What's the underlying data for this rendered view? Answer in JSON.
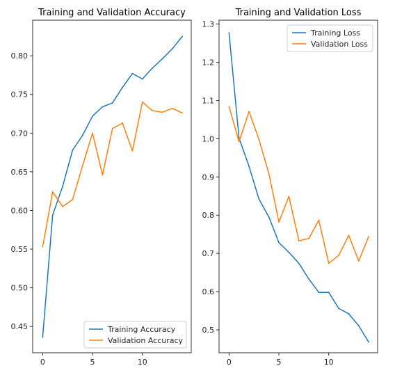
{
  "chart_data": [
    {
      "type": "line",
      "title": "Training and Validation Accuracy",
      "xlabel": "",
      "ylabel": "",
      "xlim": [
        -1,
        14.9
      ],
      "ylim": [
        0.416,
        0.846
      ],
      "xticks": [
        0,
        5,
        10
      ],
      "yticks": [
        0.45,
        0.5,
        0.55,
        0.6,
        0.65,
        0.7,
        0.75,
        0.8
      ],
      "ytick_labels": [
        "0.45",
        "0.50",
        "0.55",
        "0.60",
        "0.65",
        "0.70",
        "0.75",
        "0.80"
      ],
      "grid": false,
      "legend_position": "lower right",
      "x": [
        0,
        1,
        2,
        3,
        4,
        5,
        6,
        7,
        8,
        9,
        10,
        11,
        12,
        13,
        14
      ],
      "series": [
        {
          "name": "Training Accuracy",
          "color": "#1f77b4",
          "values": [
            0.436,
            0.594,
            0.631,
            0.678,
            0.697,
            0.722,
            0.734,
            0.739,
            0.759,
            0.777,
            0.77,
            0.784,
            0.796,
            0.809,
            0.825
          ]
        },
        {
          "name": "Validation Accuracy",
          "color": "#ff7f0e",
          "values": [
            0.553,
            0.624,
            0.605,
            0.614,
            0.658,
            0.7,
            0.646,
            0.706,
            0.713,
            0.677,
            0.74,
            0.729,
            0.727,
            0.732,
            0.726
          ]
        }
      ]
    },
    {
      "type": "line",
      "title": "Training and Validation Loss",
      "xlabel": "",
      "ylabel": "",
      "xlim": [
        -1,
        14.9
      ],
      "ylim": [
        0.44,
        1.31
      ],
      "xticks": [
        0,
        5,
        10
      ],
      "yticks": [
        0.5,
        0.6,
        0.7,
        0.8,
        0.9,
        1.0,
        1.1,
        1.2,
        1.3
      ],
      "ytick_labels": [
        "0.5",
        "0.6",
        "0.7",
        "0.8",
        "0.9",
        "1.0",
        "1.1",
        "1.2",
        "1.3"
      ],
      "grid": false,
      "legend_position": "upper right",
      "x": [
        0,
        1,
        2,
        3,
        4,
        5,
        6,
        7,
        8,
        9,
        10,
        11,
        12,
        13,
        14
      ],
      "series": [
        {
          "name": "Training Loss",
          "color": "#1f77b4",
          "values": [
            1.277,
            1.002,
            0.928,
            0.842,
            0.795,
            0.728,
            0.703,
            0.674,
            0.633,
            0.598,
            0.598,
            0.556,
            0.542,
            0.511,
            0.468
          ]
        },
        {
          "name": "Validation Loss",
          "color": "#ff7f0e",
          "values": [
            1.084,
            0.992,
            1.071,
            0.998,
            0.908,
            0.782,
            0.849,
            0.733,
            0.739,
            0.787,
            0.674,
            0.695,
            0.747,
            0.68,
            0.744
          ]
        }
      ]
    }
  ]
}
